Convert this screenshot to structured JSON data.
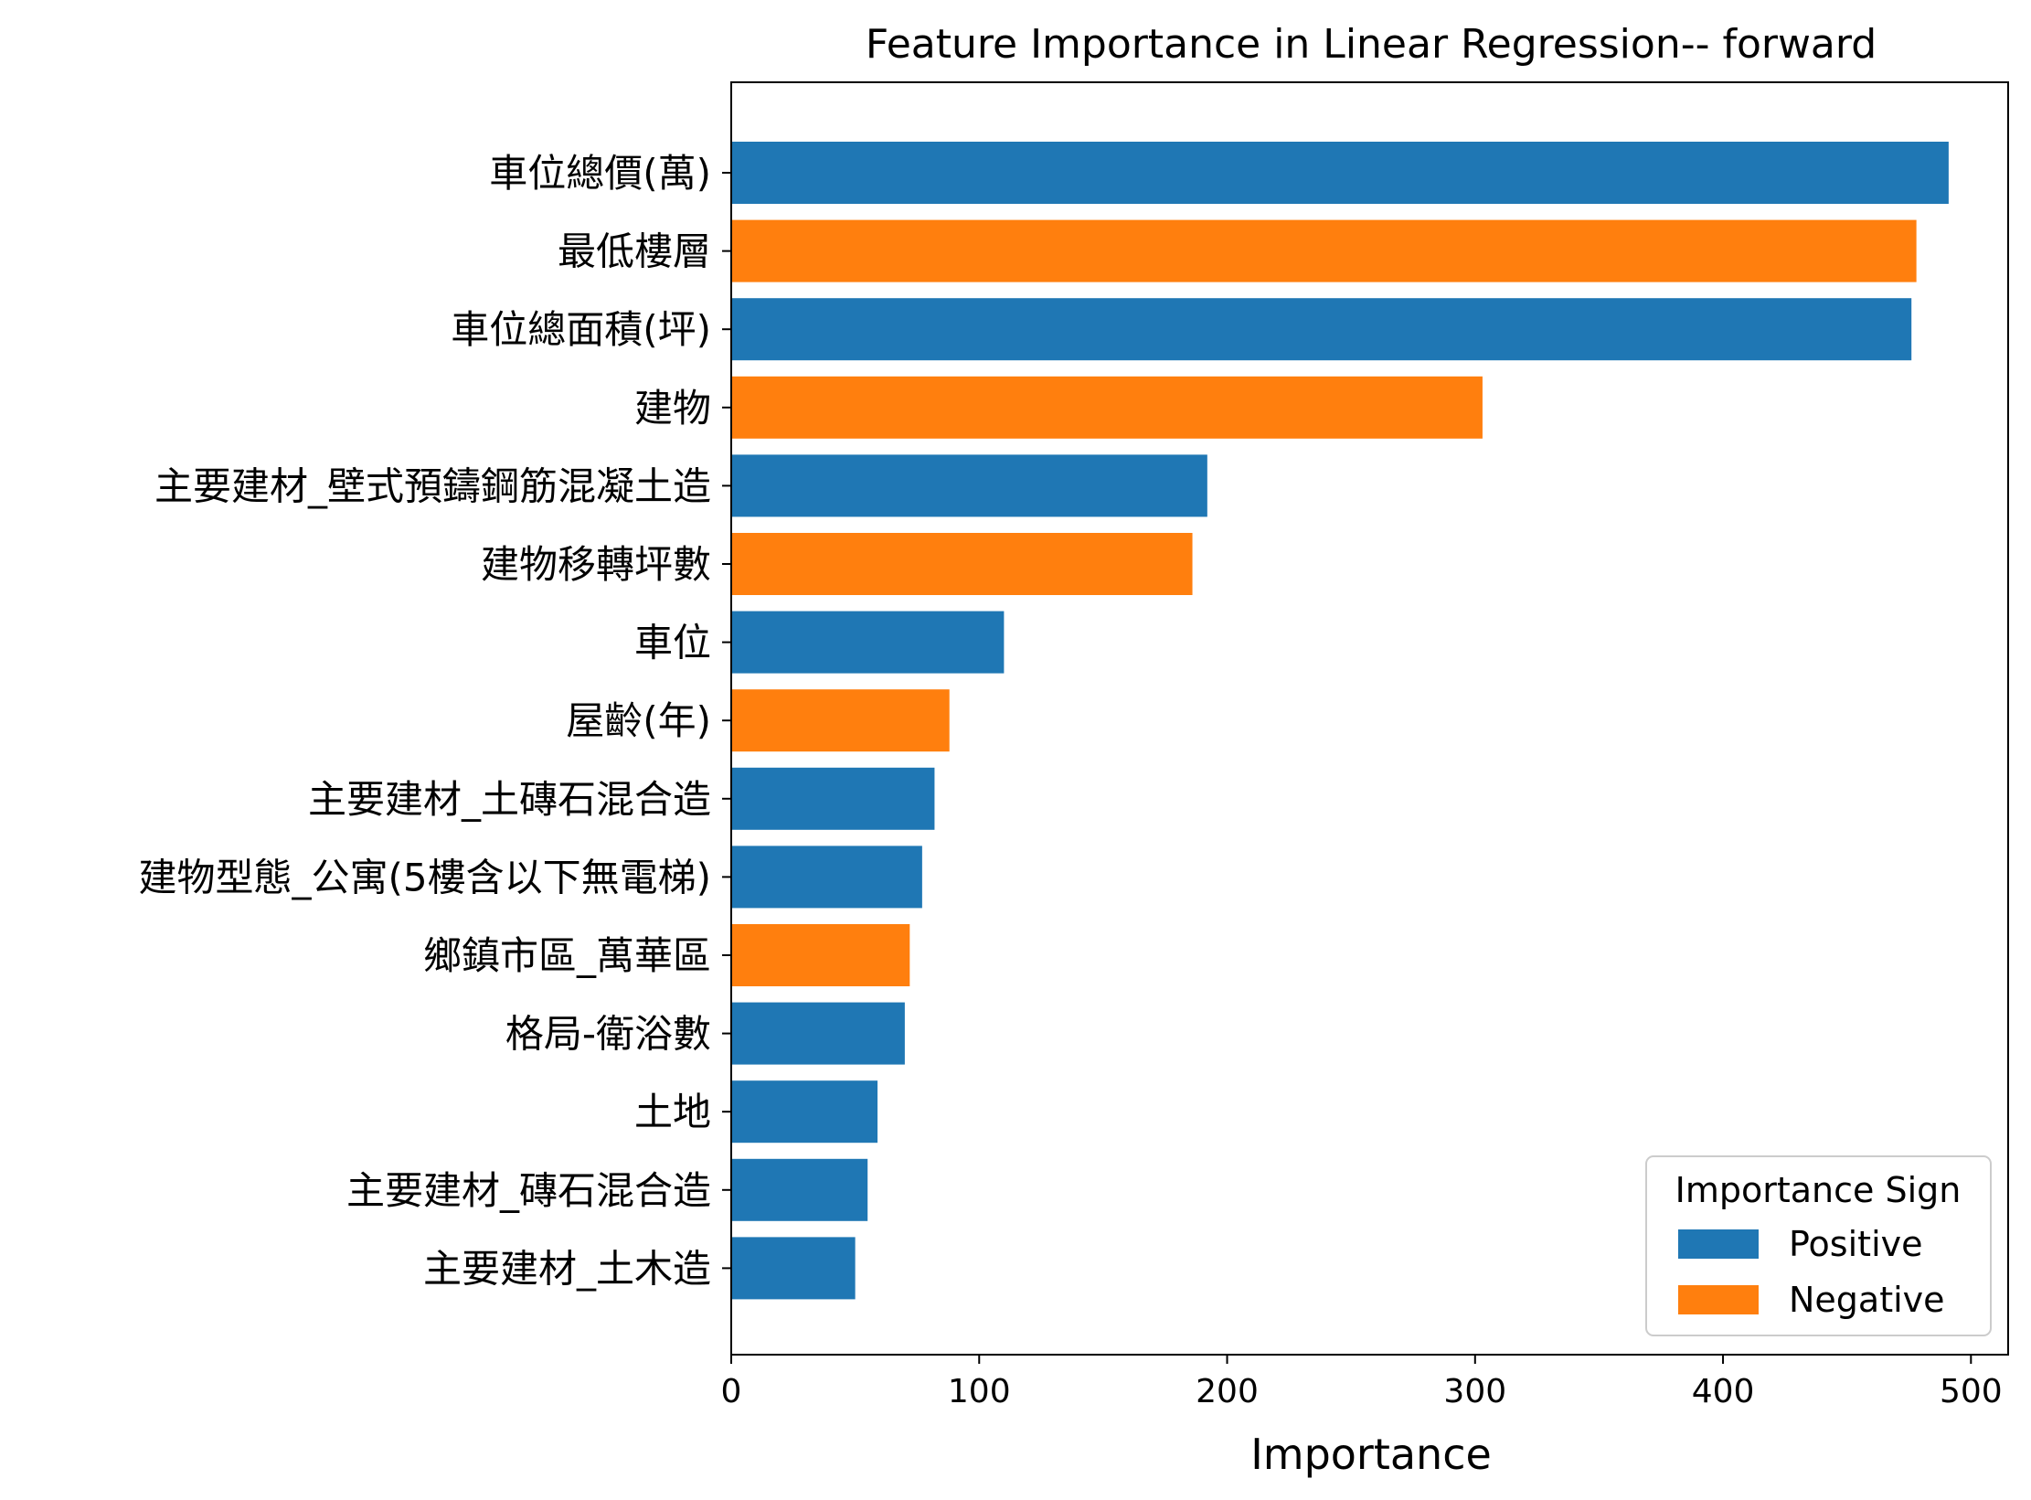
{
  "chart_data": {
    "type": "bar",
    "orientation": "horizontal",
    "title": "Feature Importance in Linear Regression-- forward",
    "xlabel": "Importance",
    "ylabel": "",
    "xlim": [
      0,
      515
    ],
    "xticks": [
      0,
      100,
      200,
      300,
      400,
      500
    ],
    "xtick_labels": [
      "0",
      "100",
      "200",
      "300",
      "400",
      "500"
    ],
    "grid": false,
    "categories": [
      "車位總價(萬)",
      "最低樓層",
      "車位總面積(坪)",
      "建物",
      "主要建材_壁式預鑄鋼筋混凝土造",
      "建物移轉坪數",
      "車位",
      "屋齡(年)",
      "主要建材_土磚石混合造",
      "建物型態_公寓(5樓含以下無電梯)",
      "鄉鎮市區_萬華區",
      "格局-衛浴數",
      "土地",
      "主要建材_磚石混合造",
      "主要建材_土木造"
    ],
    "values": [
      491,
      478,
      476,
      303,
      192,
      186,
      110,
      88,
      82,
      77,
      72,
      70,
      59,
      55,
      50
    ],
    "signs": [
      "Positive",
      "Negative",
      "Positive",
      "Negative",
      "Positive",
      "Negative",
      "Positive",
      "Negative",
      "Positive",
      "Positive",
      "Negative",
      "Positive",
      "Positive",
      "Positive",
      "Positive"
    ],
    "legend": {
      "title": "Importance Sign",
      "placement": "lower-right",
      "entries": [
        {
          "label": "Positive",
          "color": "#1f77b4"
        },
        {
          "label": "Negative",
          "color": "#ff7f0e"
        }
      ]
    },
    "colors": {
      "Positive": "#1f77b4",
      "Negative": "#ff7f0e"
    }
  }
}
